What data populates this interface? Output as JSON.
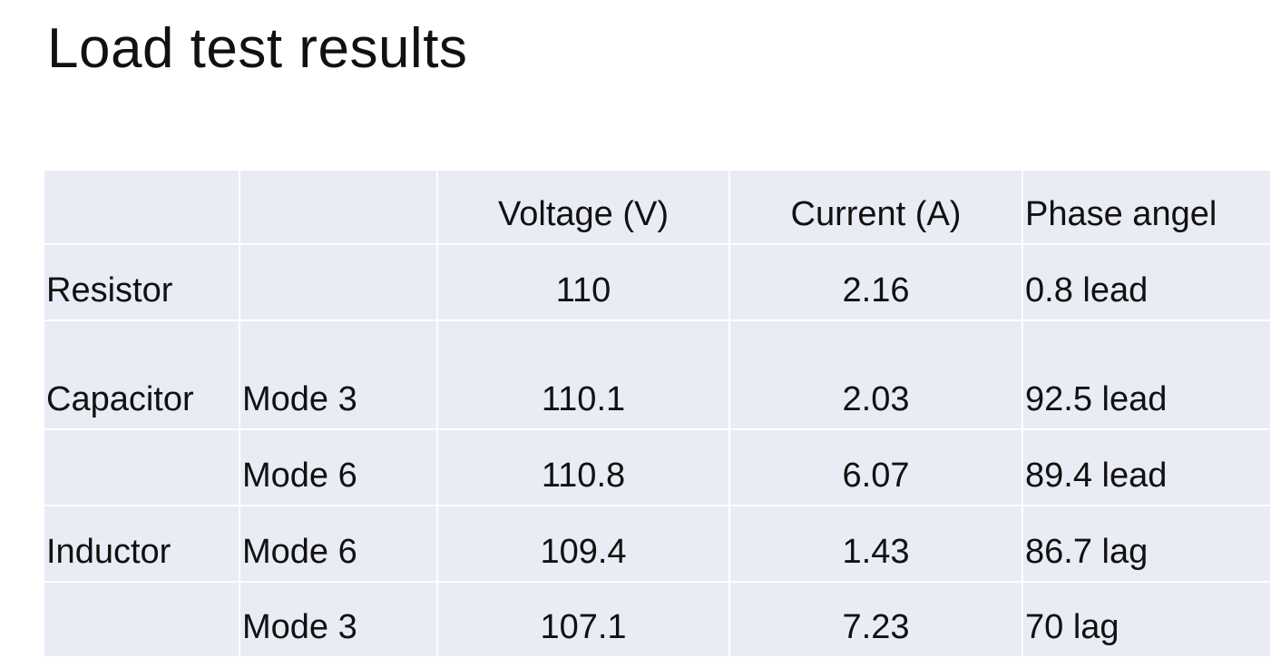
{
  "header": {
    "title": "Load test results"
  },
  "table": {
    "rows": [
      [
        null,
        null,
        "Voltage (V)",
        "Current (A)",
        "Phase angel"
      ],
      [
        "Resistor",
        null,
        "110",
        "2.16",
        "0.8 lead"
      ],
      [
        "Capacitor",
        "Mode 3",
        "110.1",
        "2.03",
        "92.5 lead"
      ],
      [
        null,
        "Mode 6",
        "110.8",
        "6.07",
        "89.4 lead"
      ],
      [
        "Inductor",
        "Mode 6",
        "109.4",
        "1.43",
        "86.7 lag"
      ],
      [
        null,
        "Mode 3",
        "107.1",
        "7.23",
        "70 lag"
      ]
    ]
  }
}
